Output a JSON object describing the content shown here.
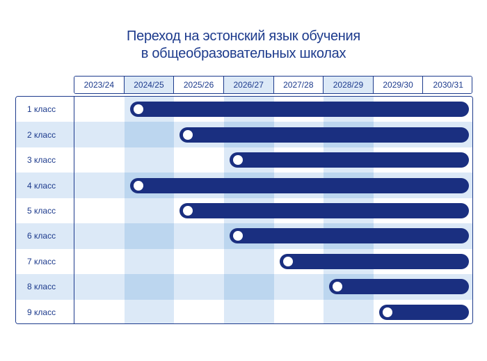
{
  "title_lines": [
    "Переход на эстонский язык обучения",
    "в общеобразовательных школах"
  ],
  "colors": {
    "navy": "#1c3a8c",
    "bar": "#1a2f80",
    "stripe_light": "#dce9f7",
    "stripe_medium": "#bcd6ef",
    "white": "#ffffff"
  },
  "chart_data": {
    "type": "table",
    "title": "Переход на эстонский язык обучения в общеобразовательных школах",
    "years": [
      "2023/24",
      "2024/25",
      "2025/26",
      "2026/27",
      "2027/28",
      "2028/29",
      "2029/30",
      "2030/31"
    ],
    "shaded_year_columns": [
      1,
      3,
      5
    ],
    "rows": [
      {
        "label": "1 класс",
        "start_year": "2024/25"
      },
      {
        "label": "2 класс",
        "start_year": "2025/26"
      },
      {
        "label": "3 класс",
        "start_year": "2026/27"
      },
      {
        "label": "4 класс",
        "start_year": "2024/25"
      },
      {
        "label": "5 класс",
        "start_year": "2025/26"
      },
      {
        "label": "6 класс",
        "start_year": "2026/27"
      },
      {
        "label": "7 класс",
        "start_year": "2027/28"
      },
      {
        "label": "8 класс",
        "start_year": "2028/29"
      },
      {
        "label": "9 класс",
        "start_year": "2029/30"
      }
    ],
    "end_year": "2030/31"
  }
}
